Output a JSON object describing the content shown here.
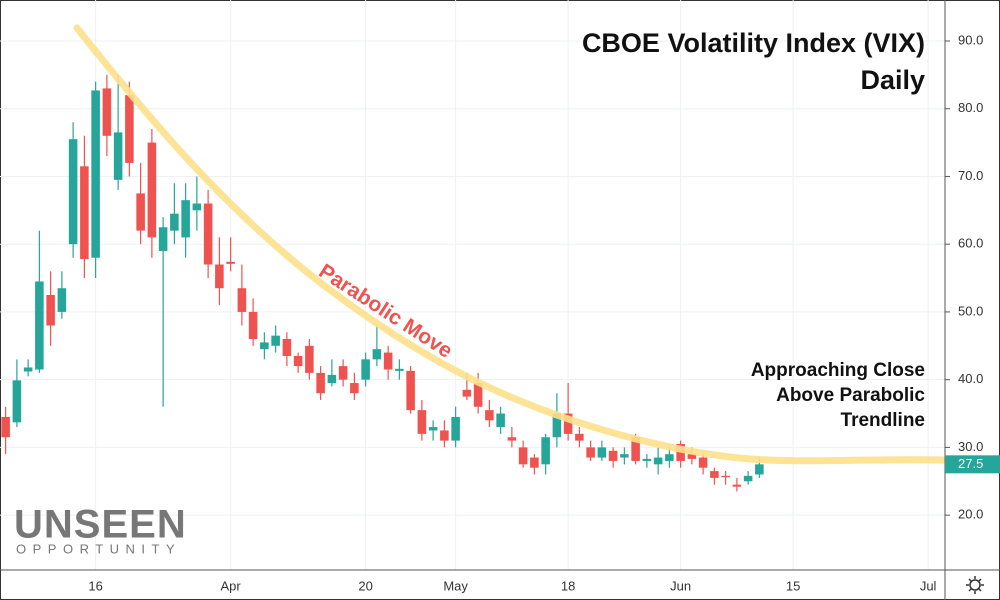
{
  "chart_data": {
    "type": "candlestick",
    "title": "CBOE Volatility Index (VIX)",
    "subtitle": "Daily",
    "annotations": [
      "Parabolic Move",
      "Approaching Close",
      "Above Parabolic",
      "Trendline"
    ],
    "logo": {
      "name": "UNSEEN",
      "tagline": "OPPORTUNITY"
    },
    "categories": [
      null,
      null,
      null,
      null,
      null,
      null,
      null,
      null,
      "16",
      null,
      null,
      null,
      null,
      null,
      null,
      null,
      null,
      null,
      null,
      null,
      "Apr",
      null,
      null,
      null,
      null,
      null,
      null,
      null,
      null,
      null,
      null,
      null,
      "20",
      null,
      null,
      null,
      null,
      null,
      null,
      null,
      "May",
      null,
      null,
      null,
      null,
      null,
      null,
      null,
      null,
      null,
      "18",
      null,
      null,
      null,
      null,
      null,
      null,
      null,
      null,
      null,
      "Jun",
      null,
      null,
      null,
      null,
      null,
      null,
      null,
      null,
      null,
      "15",
      null,
      null,
      null,
      null,
      null,
      null,
      null,
      null,
      null,
      null,
      null,
      "Jul",
      null
    ],
    "series": {
      "up_color": "#26a69a",
      "down_color": "#ef5350",
      "open": [
        34.5,
        33.7,
        41.2,
        41.5,
        52.5,
        50,
        60,
        71.5,
        58,
        83,
        69.5,
        82,
        67.5,
        75,
        59,
        62,
        61,
        65,
        66,
        57,
        57.4,
        53.5,
        50,
        44.5,
        45,
        46,
        43.5,
        45,
        41,
        39.5,
        42,
        39.5,
        40,
        43,
        44,
        41.3,
        41.3,
        35.5,
        32.5,
        32.5,
        31,
        38.5,
        39.5,
        35.5,
        33,
        31.5,
        30,
        28.5,
        27.5,
        31.5,
        35,
        32,
        30,
        28.5,
        29.5,
        28.5,
        31.5,
        28,
        27.5,
        28,
        30.5,
        29,
        28.5,
        26.5,
        25.8,
        24.5,
        25,
        26,
        null,
        null,
        null,
        null,
        null,
        null,
        null,
        null,
        null,
        null,
        null,
        null,
        null,
        null,
        null,
        null
      ],
      "high": [
        36,
        43,
        43,
        62,
        56,
        56,
        78,
        76,
        84,
        85,
        85,
        84,
        72,
        77,
        64,
        69,
        69,
        70,
        68,
        61,
        61,
        57,
        52,
        47,
        48,
        47,
        44,
        46,
        42,
        43,
        43,
        41,
        44,
        48,
        45,
        43,
        42,
        37,
        34,
        34,
        36,
        41,
        41,
        37,
        36,
        33,
        31,
        29,
        32,
        38,
        39.5,
        33,
        31,
        31,
        30,
        30,
        32,
        29,
        30,
        30,
        31,
        30,
        29,
        27,
        26.5,
        25.5,
        26.5,
        28.5,
        null,
        null,
        null,
        null,
        null,
        null,
        null,
        null,
        null,
        null,
        null,
        null,
        null,
        null,
        null,
        null
      ],
      "low": [
        29,
        33,
        40.5,
        41,
        45,
        49,
        58,
        55,
        55,
        73,
        68,
        70,
        60,
        58,
        36,
        60,
        58,
        62,
        55,
        51,
        56,
        48,
        45,
        43,
        44,
        42,
        41,
        40,
        37,
        39,
        39,
        37,
        39,
        42,
        40,
        40,
        35,
        31,
        31,
        30,
        30,
        37,
        35,
        33,
        32,
        30,
        27,
        26,
        26,
        30,
        31,
        30,
        28,
        28,
        27,
        27.5,
        27.5,
        27,
        26,
        27,
        27,
        27.5,
        26,
        24.5,
        24.5,
        23.5,
        24.5,
        25.5,
        null,
        null,
        null,
        null,
        null,
        null,
        null,
        null,
        null,
        null,
        null,
        null,
        null,
        null,
        null,
        null
      ],
      "close": [
        31.5,
        39.9,
        41.8,
        54.5,
        48,
        53.5,
        75.5,
        57.8,
        82.7,
        76,
        76.5,
        72,
        62,
        61,
        62.5,
        64.5,
        66.5,
        66,
        57,
        53.5,
        57.1,
        50,
        46,
        45.5,
        46.5,
        43.5,
        42,
        41,
        38,
        40.7,
        40,
        38,
        43,
        44.5,
        41.5,
        41.6,
        35.5,
        32,
        33,
        31,
        34.5,
        37.5,
        36,
        34,
        35,
        31,
        27.5,
        27,
        31.5,
        35,
        32,
        31,
        28.5,
        30,
        28,
        29,
        28,
        28.3,
        28.5,
        29,
        28,
        28.3,
        27,
        25.5,
        25.6,
        24.2,
        25.8,
        27.5,
        null,
        null,
        null,
        null,
        null,
        null,
        null,
        null,
        null,
        null,
        null,
        null,
        null,
        null,
        null,
        null
      ]
    },
    "ylim": [
      11.9,
      96.05
    ],
    "yticks": [
      {
        "value": 20,
        "label": "20.0"
      },
      {
        "value": 30,
        "label": "30.0"
      },
      {
        "value": 40,
        "label": "40.0"
      },
      {
        "value": 50,
        "label": "50.0"
      },
      {
        "value": 60,
        "label": "60.0"
      },
      {
        "value": 70,
        "label": "70.0"
      },
      {
        "value": 80,
        "label": "80.0"
      },
      {
        "value": 90,
        "label": "90.0"
      }
    ],
    "grid": true
  }
}
